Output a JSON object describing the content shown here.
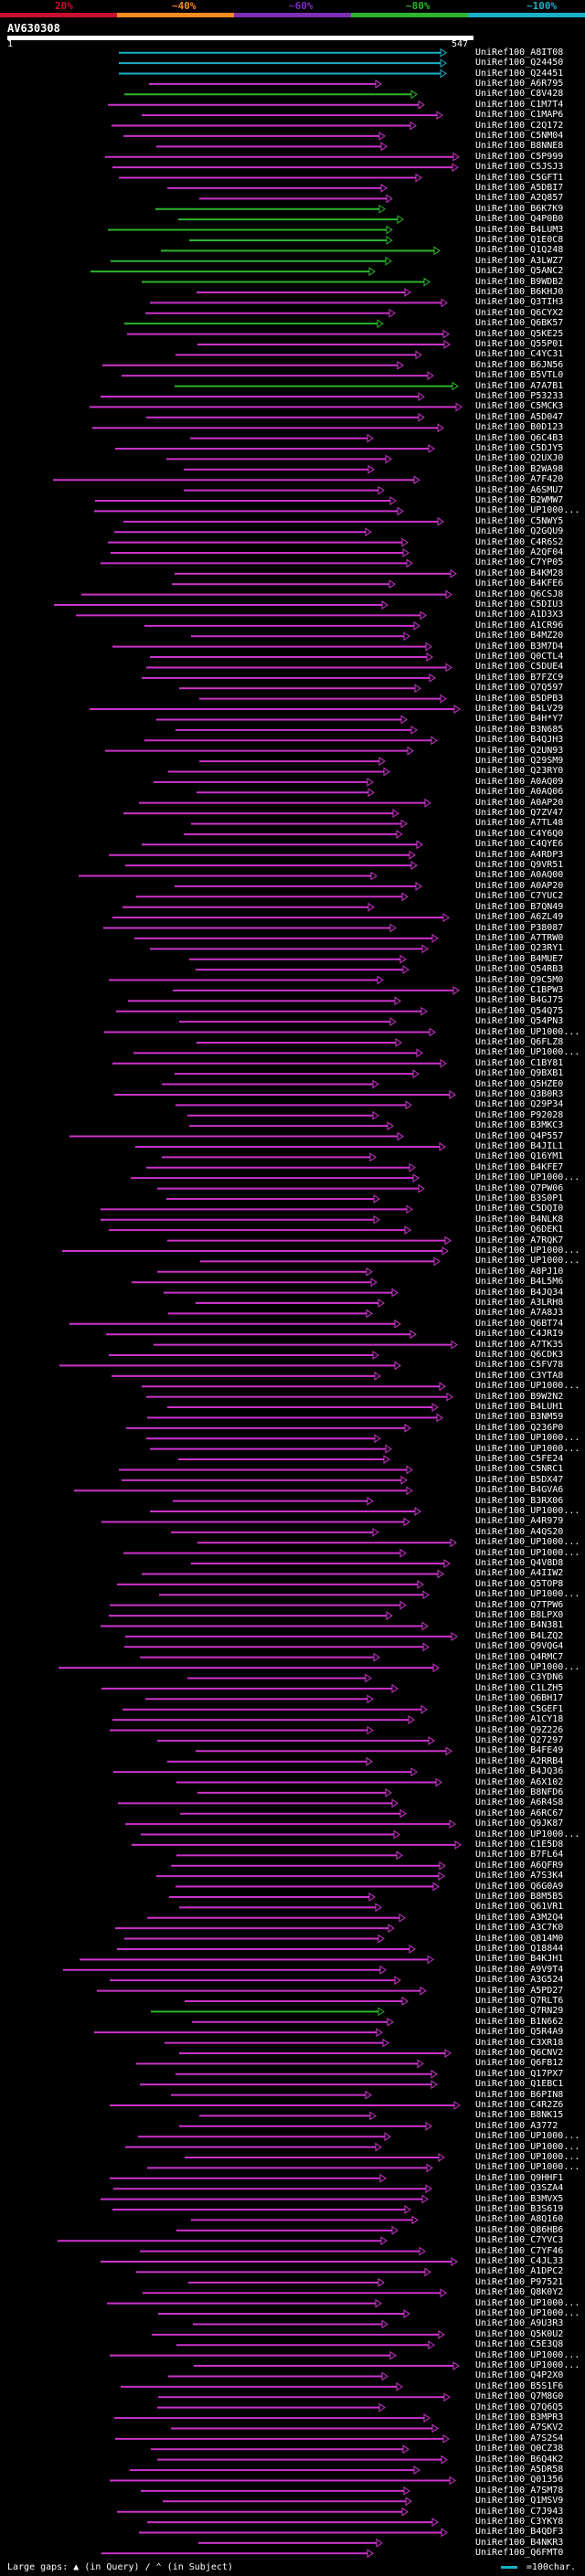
{
  "scale": {
    "ticks": [
      "20%",
      "~40%",
      "~60%",
      "~80%",
      "~100%"
    ],
    "colors": [
      "#c8102e",
      "#f58c1f",
      "#7d2eb5",
      "#2db52d",
      "#1ab0c7"
    ]
  },
  "query": {
    "name": "AV630308",
    "start": "1",
    "end": "547"
  },
  "hits": [
    {
      "name": "UniRef100_A8IT08",
      "c": "#1ab0c7"
    },
    {
      "name": "UniRef100_Q24450",
      "c": "#1ab0c7"
    },
    {
      "name": "UniRef100_Q24451",
      "c": "#1ab0c7"
    },
    {
      "name": "UniRef100_A6R795",
      "c": "#cc33cc"
    },
    {
      "name": "UniRef100_C8V428",
      "c": "#2db52d"
    },
    {
      "name": "UniRef100_C1M7T4",
      "c": "#cc33cc"
    },
    {
      "name": "UniRef100_C1MAP6",
      "c": "#cc33cc"
    },
    {
      "name": "UniRef100_C2Q172",
      "c": "#cc33cc"
    },
    {
      "name": "UniRef100_C5NM04",
      "c": "#cc33cc"
    },
    {
      "name": "UniRef100_B8NNE8",
      "c": "#cc33cc"
    },
    {
      "name": "UniRef100_C5P999",
      "c": "#cc33cc"
    },
    {
      "name": "UniRef100_C5JSJ3",
      "c": "#cc33cc"
    },
    {
      "name": "UniRef100_C5GFT1",
      "c": "#cc33cc"
    },
    {
      "name": "UniRef100_A5DBI7",
      "c": "#cc33cc"
    },
    {
      "name": "UniRef100_A2Q857",
      "c": "#cc33cc"
    },
    {
      "name": "UniRef100_B6K7K9",
      "c": "#2db52d"
    },
    {
      "name": "UniRef100_Q4P0B0",
      "c": "#2db52d"
    },
    {
      "name": "UniRef100_B4LUM3",
      "c": "#2db52d"
    },
    {
      "name": "UniRef100_Q1E0C8",
      "c": "#2db52d"
    },
    {
      "name": "UniRef100_Q1Q248",
      "c": "#2db52d"
    },
    {
      "name": "UniRef100_A3LWZ7",
      "c": "#2db52d"
    },
    {
      "name": "UniRef100_Q5ANC2",
      "c": "#2db52d"
    },
    {
      "name": "UniRef100_B9WDB2",
      "c": "#2db52d"
    },
    {
      "name": "UniRef100_B6KHJ0",
      "c": "#cc33cc"
    },
    {
      "name": "UniRef100_Q3TIH3",
      "c": "#cc33cc"
    },
    {
      "name": "UniRef100_Q6CYX2",
      "c": "#cc33cc"
    },
    {
      "name": "UniRef100_Q6BK57",
      "c": "#2db52d"
    },
    {
      "name": "UniRef100_Q5KE25",
      "c": "#cc33cc"
    },
    {
      "name": "UniRef100_Q55P01",
      "c": "#cc33cc"
    },
    {
      "name": "UniRef100_C4YC31",
      "c": "#cc33cc"
    },
    {
      "name": "UniRef100_B6JN56",
      "c": "#cc33cc"
    },
    {
      "name": "UniRef100_B5VTL0",
      "c": "#cc33cc"
    },
    {
      "name": "UniRef100_A7A7B1",
      "c": "#2db52d"
    },
    {
      "name": "UniRef100_P53233",
      "c": "#cc33cc"
    },
    {
      "name": "UniRef100_C5MCK3",
      "c": "#cc33cc"
    },
    {
      "name": "UniRef100_A5D047",
      "c": "#cc33cc"
    },
    {
      "name": "UniRef100_B0D123",
      "c": "#cc33cc"
    },
    {
      "name": "UniRef100_Q6C4B3",
      "c": "#cc33cc"
    },
    {
      "name": "UniRef100_C5DJY5",
      "c": "#cc33cc"
    },
    {
      "name": "UniRef100_Q2UXJ0",
      "c": "#cc33cc"
    },
    {
      "name": "UniRef100_B2WA98",
      "c": "#cc33cc"
    },
    {
      "name": "UniRef100_A7F420",
      "c": "#cc33cc"
    },
    {
      "name": "UniRef100_A6SMU7",
      "c": "#cc33cc"
    },
    {
      "name": "UniRef100_B2WMW7",
      "c": "#cc33cc"
    },
    {
      "name": "UniRef100_UP1000...",
      "c": "#cc33cc"
    },
    {
      "name": "UniRef100_C5NWY5",
      "c": "#cc33cc"
    },
    {
      "name": "UniRef100_Q2GQU9",
      "c": "#cc33cc"
    },
    {
      "name": "UniRef100_C4R6S2",
      "c": "#cc33cc"
    },
    {
      "name": "UniRef100_A2QF04",
      "c": "#cc33cc"
    },
    {
      "name": "UniRef100_C7YP05",
      "c": "#cc33cc"
    },
    {
      "name": "UniRef100_B4KM28",
      "c": "#cc33cc"
    },
    {
      "name": "UniRef100_B4KFE6",
      "c": "#cc33cc"
    },
    {
      "name": "UniRef100_Q6CSJ8",
      "c": "#cc33cc"
    },
    {
      "name": "UniRef100_C5DIU3",
      "c": "#cc33cc"
    },
    {
      "name": "UniRef100_A1D3X3",
      "c": "#cc33cc"
    },
    {
      "name": "UniRef100_A1CR96",
      "c": "#cc33cc"
    },
    {
      "name": "UniRef100_B4MZ20",
      "c": "#cc33cc"
    },
    {
      "name": "UniRef100_B3M7D4",
      "c": "#cc33cc"
    },
    {
      "name": "UniRef100_Q0CTL4",
      "c": "#cc33cc"
    },
    {
      "name": "UniRef100_C5DUE4",
      "c": "#cc33cc"
    },
    {
      "name": "UniRef100_B7FZC9",
      "c": "#cc33cc"
    },
    {
      "name": "UniRef100_Q7Q597",
      "c": "#cc33cc"
    },
    {
      "name": "UniRef100_B5DPB3",
      "c": "#cc33cc"
    },
    {
      "name": "UniRef100_B4LV29",
      "c": "#cc33cc"
    },
    {
      "name": "UniRef100_B4H*Y7",
      "c": "#cc33cc"
    },
    {
      "name": "UniRef100_B3N685",
      "c": "#cc33cc"
    },
    {
      "name": "UniRef100_B4QJH3",
      "c": "#cc33cc"
    },
    {
      "name": "UniRef100_Q2UN93",
      "c": "#cc33cc"
    },
    {
      "name": "UniRef100_Q29SM9",
      "c": "#cc33cc"
    },
    {
      "name": "UniRef100_Q23RY0",
      "c": "#cc33cc"
    },
    {
      "name": "UniRef100_A0AQ09",
      "c": "#cc33cc"
    },
    {
      "name": "UniRef100_A0AQ06",
      "c": "#cc33cc"
    },
    {
      "name": "UniRef100_A0AP20",
      "c": "#cc33cc"
    },
    {
      "name": "UniRef100_Q7ZV47",
      "c": "#cc33cc"
    },
    {
      "name": "UniRef100_A7TL48",
      "c": "#cc33cc"
    },
    {
      "name": "UniRef100_C4Y6Q0",
      "c": "#cc33cc"
    },
    {
      "name": "UniRef100_C4QYE6",
      "c": "#cc33cc"
    },
    {
      "name": "UniRef100_A4RDP3",
      "c": "#cc33cc"
    },
    {
      "name": "UniRef100_Q9VR51",
      "c": "#cc33cc"
    },
    {
      "name": "UniRef100_A0AQ00",
      "c": "#cc33cc"
    },
    {
      "name": "UniRef100_A0AP20",
      "c": "#cc33cc"
    },
    {
      "name": "UniRef100_C7YUC2",
      "c": "#cc33cc"
    },
    {
      "name": "UniRef100_B7QN49",
      "c": "#cc33cc"
    },
    {
      "name": "UniRef100_A6ZL49",
      "c": "#cc33cc"
    },
    {
      "name": "UniRef100_P38087",
      "c": "#cc33cc"
    },
    {
      "name": "UniRef100_A7TRW0",
      "c": "#cc33cc"
    },
    {
      "name": "UniRef100_Q23RY1",
      "c": "#cc33cc"
    },
    {
      "name": "UniRef100_B4MUE7",
      "c": "#cc33cc"
    },
    {
      "name": "UniRef100_Q54RB3",
      "c": "#cc33cc"
    },
    {
      "name": "UniRef100_Q9C5M0",
      "c": "#cc33cc"
    },
    {
      "name": "UniRef100_C1BPW3",
      "c": "#cc33cc"
    },
    {
      "name": "UniRef100_B4GJ75",
      "c": "#cc33cc"
    },
    {
      "name": "UniRef100_Q54Q75",
      "c": "#cc33cc"
    },
    {
      "name": "UniRef100_Q54PN3",
      "c": "#cc33cc"
    },
    {
      "name": "UniRef100_UP1000...",
      "c": "#cc33cc"
    },
    {
      "name": "UniRef100_Q6FLZ8",
      "c": "#cc33cc"
    },
    {
      "name": "UniRef100_UP1000...",
      "c": "#cc33cc"
    },
    {
      "name": "UniRef100_C1BY81",
      "c": "#cc33cc"
    },
    {
      "name": "UniRef100_Q9BXB1",
      "c": "#cc33cc"
    },
    {
      "name": "UniRef100_Q5HZE0",
      "c": "#cc33cc"
    },
    {
      "name": "UniRef100_Q3B0R3",
      "c": "#cc33cc"
    },
    {
      "name": "UniRef100_Q29P34",
      "c": "#cc33cc"
    },
    {
      "name": "UniRef100_P92028",
      "c": "#cc33cc"
    },
    {
      "name": "UniRef100_B3MKC3",
      "c": "#cc33cc"
    },
    {
      "name": "UniRef100_Q4P557",
      "c": "#cc33cc"
    },
    {
      "name": "UniRef100_B4JIL1",
      "c": "#cc33cc"
    },
    {
      "name": "UniRef100_Q16YM1",
      "c": "#cc33cc"
    },
    {
      "name": "UniRef100_B4KFE7",
      "c": "#cc33cc"
    },
    {
      "name": "UniRef100_UP1000...",
      "c": "#cc33cc"
    },
    {
      "name": "UniRef100_Q7PW06",
      "c": "#cc33cc"
    },
    {
      "name": "UniRef100_B3S0P1",
      "c": "#cc33cc"
    },
    {
      "name": "UniRef100_C5DQI0",
      "c": "#cc33cc"
    },
    {
      "name": "UniRef100_B4NLK8",
      "c": "#cc33cc"
    },
    {
      "name": "UniRef100_Q6DEK1",
      "c": "#cc33cc"
    },
    {
      "name": "UniRef100_A7RQK7",
      "c": "#cc33cc"
    },
    {
      "name": "UniRef100_UP1000...",
      "c": "#cc33cc"
    },
    {
      "name": "UniRef100_UP1000...",
      "c": "#cc33cc"
    },
    {
      "name": "UniRef100_A8PJ10",
      "c": "#cc33cc"
    },
    {
      "name": "UniRef100_B4L5M6",
      "c": "#cc33cc"
    },
    {
      "name": "UniRef100_B4JQ34",
      "c": "#cc33cc"
    },
    {
      "name": "UniRef100_A3LRH8",
      "c": "#cc33cc"
    },
    {
      "name": "UniRef100_A7A8J3",
      "c": "#cc33cc"
    },
    {
      "name": "UniRef100_Q6BT74",
      "c": "#cc33cc"
    },
    {
      "name": "UniRef100_C4JRI9",
      "c": "#cc33cc"
    },
    {
      "name": "UniRef100_A7TK35",
      "c": "#cc33cc"
    },
    {
      "name": "UniRef100_Q6CDK3",
      "c": "#cc33cc"
    },
    {
      "name": "UniRef100_C5FV78",
      "c": "#cc33cc"
    },
    {
      "name": "UniRef100_C3YTA8",
      "c": "#cc33cc"
    },
    {
      "name": "UniRef100_UP1000...",
      "c": "#cc33cc"
    },
    {
      "name": "UniRef100_B9W2N2",
      "c": "#cc33cc"
    },
    {
      "name": "UniRef100_B4LUH1",
      "c": "#cc33cc"
    },
    {
      "name": "UniRef100_B3NM59",
      "c": "#cc33cc"
    },
    {
      "name": "UniRef100_Q236P0",
      "c": "#cc33cc"
    },
    {
      "name": "UniRef100_UP1000...",
      "c": "#cc33cc"
    },
    {
      "name": "UniRef100_UP1000...",
      "c": "#cc33cc"
    },
    {
      "name": "UniRef100_C5FE24",
      "c": "#cc33cc"
    },
    {
      "name": "UniRef100_C5NRC1",
      "c": "#cc33cc"
    },
    {
      "name": "UniRef100_B5DX47",
      "c": "#cc33cc"
    },
    {
      "name": "UniRef100_B4GVA6",
      "c": "#cc33cc"
    },
    {
      "name": "UniRef100_B3RX06",
      "c": "#cc33cc"
    },
    {
      "name": "UniRef100_UP1000...",
      "c": "#cc33cc"
    },
    {
      "name": "UniRef100_A4R979",
      "c": "#cc33cc"
    },
    {
      "name": "UniRef100_A4QS20",
      "c": "#cc33cc"
    },
    {
      "name": "UniRef100_UP1000...",
      "c": "#cc33cc"
    },
    {
      "name": "UniRef100_UP1000...",
      "c": "#cc33cc"
    },
    {
      "name": "UniRef100_Q4V8D8",
      "c": "#cc33cc"
    },
    {
      "name": "UniRef100_A4IIW2",
      "c": "#cc33cc"
    },
    {
      "name": "UniRef100_Q5TOP8",
      "c": "#cc33cc"
    },
    {
      "name": "UniRef100_UP1000...",
      "c": "#cc33cc"
    },
    {
      "name": "UniRef100_Q7TPW6",
      "c": "#cc33cc"
    },
    {
      "name": "UniRef100_B8LPX0",
      "c": "#cc33cc"
    },
    {
      "name": "UniRef100_B4N381",
      "c": "#cc33cc"
    },
    {
      "name": "UniRef100_B4LZQ2",
      "c": "#cc33cc"
    },
    {
      "name": "UniRef100_Q9VQG4",
      "c": "#cc33cc"
    },
    {
      "name": "UniRef100_Q4RMC7",
      "c": "#cc33cc"
    },
    {
      "name": "UniRef100_UP1000...",
      "c": "#cc33cc"
    },
    {
      "name": "UniRef100_C3YDN6",
      "c": "#cc33cc"
    },
    {
      "name": "UniRef100_C1LZH5",
      "c": "#cc33cc"
    },
    {
      "name": "UniRef100_Q6BH17",
      "c": "#cc33cc"
    },
    {
      "name": "UniRef100_C5GEF1",
      "c": "#cc33cc"
    },
    {
      "name": "UniRef100_A1CY18",
      "c": "#cc33cc"
    },
    {
      "name": "UniRef100_Q9Z226",
      "c": "#cc33cc"
    },
    {
      "name": "UniRef100_Q27297",
      "c": "#cc33cc"
    },
    {
      "name": "UniRef100_B4FE49",
      "c": "#cc33cc"
    },
    {
      "name": "UniRef100_A2RRB4",
      "c": "#cc33cc"
    },
    {
      "name": "UniRef100_B4JQ36",
      "c": "#cc33cc"
    },
    {
      "name": "UniRef100_A6X102",
      "c": "#cc33cc"
    },
    {
      "name": "UniRef100_B8NFD6",
      "c": "#cc33cc"
    },
    {
      "name": "UniRef100_A6R4S8",
      "c": "#cc33cc"
    },
    {
      "name": "UniRef100_A6RC67",
      "c": "#cc33cc"
    },
    {
      "name": "UniRef100_Q9JK87",
      "c": "#cc33cc"
    },
    {
      "name": "UniRef100_UP1000...",
      "c": "#cc33cc"
    },
    {
      "name": "UniRef100_C1E5D8",
      "c": "#cc33cc"
    },
    {
      "name": "UniRef100_B7FL64",
      "c": "#cc33cc"
    },
    {
      "name": "UniRef100_A6QFR9",
      "c": "#cc33cc"
    },
    {
      "name": "UniRef100_A7S3K4",
      "c": "#cc33cc"
    },
    {
      "name": "UniRef100_Q6G0A9",
      "c": "#cc33cc"
    },
    {
      "name": "UniRef100_B8M5B5",
      "c": "#cc33cc"
    },
    {
      "name": "UniRef100_Q61VR1",
      "c": "#cc33cc"
    },
    {
      "name": "UniRef100_A3M2Q4",
      "c": "#cc33cc"
    },
    {
      "name": "UniRef100_A3C7K0",
      "c": "#cc33cc"
    },
    {
      "name": "UniRef100_Q814M0",
      "c": "#cc33cc"
    },
    {
      "name": "UniRef100_Q18844",
      "c": "#cc33cc"
    },
    {
      "name": "UniRef100_B4KJH1",
      "c": "#cc33cc"
    },
    {
      "name": "UniRef100_A9V9T4",
      "c": "#cc33cc"
    },
    {
      "name": "UniRef100_A3G524",
      "c": "#cc33cc"
    },
    {
      "name": "UniRef100_A5PD27",
      "c": "#cc33cc"
    },
    {
      "name": "UniRef100_Q7RLT6",
      "c": "#cc33cc"
    },
    {
      "name": "UniRef100_Q7RN29",
      "c": "#2db52d"
    },
    {
      "name": "UniRef100_B1N662",
      "c": "#cc33cc"
    },
    {
      "name": "UniRef100_Q5R4A9",
      "c": "#cc33cc"
    },
    {
      "name": "UniRef100_C3XR18",
      "c": "#cc33cc"
    },
    {
      "name": "UniRef100_Q6CNV2",
      "c": "#cc33cc"
    },
    {
      "name": "UniRef100_Q6FB12",
      "c": "#cc33cc"
    },
    {
      "name": "UniRef100_Q17PX7",
      "c": "#cc33cc"
    },
    {
      "name": "UniRef100_Q1EBC1",
      "c": "#cc33cc"
    },
    {
      "name": "UniRef100_B6PIN8",
      "c": "#cc33cc"
    },
    {
      "name": "UniRef100_C4R2Z6",
      "c": "#cc33cc"
    },
    {
      "name": "UniRef100_B8NK15",
      "c": "#cc33cc"
    },
    {
      "name": "UniRef100_A3772",
      "c": "#cc33cc"
    },
    {
      "name": "UniRef100_UP1000...",
      "c": "#cc33cc"
    },
    {
      "name": "UniRef100_UP1000...",
      "c": "#cc33cc"
    },
    {
      "name": "UniRef100_UP1000...",
      "c": "#cc33cc"
    },
    {
      "name": "UniRef100_UP1000...",
      "c": "#cc33cc"
    },
    {
      "name": "UniRef100_Q9HHF1",
      "c": "#cc33cc"
    },
    {
      "name": "UniRef100_Q3SZA4",
      "c": "#cc33cc"
    },
    {
      "name": "UniRef100_B3MVX5",
      "c": "#cc33cc"
    },
    {
      "name": "UniRef100_B3S619",
      "c": "#cc33cc"
    },
    {
      "name": "UniRef100_A8Q160",
      "c": "#cc33cc"
    },
    {
      "name": "UniRef100_Q86HB6",
      "c": "#cc33cc"
    },
    {
      "name": "UniRef100_C7YVC3",
      "c": "#cc33cc"
    },
    {
      "name": "UniRef100_C7YF46",
      "c": "#cc33cc"
    },
    {
      "name": "UniRef100_C4JL33",
      "c": "#cc33cc"
    },
    {
      "name": "UniRef100_A1DPC2",
      "c": "#cc33cc"
    },
    {
      "name": "UniRef100_P97521",
      "c": "#cc33cc"
    },
    {
      "name": "UniRef100_Q8K0Y2",
      "c": "#cc33cc"
    },
    {
      "name": "UniRef100_UP1000...",
      "c": "#cc33cc"
    },
    {
      "name": "UniRef100_UP1000...",
      "c": "#cc33cc"
    },
    {
      "name": "UniRef100_A9U3R3",
      "c": "#cc33cc"
    },
    {
      "name": "UniRef100_Q5K0U2",
      "c": "#cc33cc"
    },
    {
      "name": "UniRef100_C5E3Q8",
      "c": "#cc33cc"
    },
    {
      "name": "UniRef100_UP1000...",
      "c": "#cc33cc"
    },
    {
      "name": "UniRef100_UP1000...",
      "c": "#cc33cc"
    },
    {
      "name": "UniRef100_Q4P2X0",
      "c": "#cc33cc"
    },
    {
      "name": "UniRef100_B5S1F6",
      "c": "#cc33cc"
    },
    {
      "name": "UniRef100_Q7M8G0",
      "c": "#cc33cc"
    },
    {
      "name": "UniRef100_Q7Q6Q5",
      "c": "#cc33cc"
    },
    {
      "name": "UniRef100_B3MPR3",
      "c": "#cc33cc"
    },
    {
      "name": "UniRef100_A7SKV2",
      "c": "#cc33cc"
    },
    {
      "name": "UniRef100_A7S2S4",
      "c": "#cc33cc"
    },
    {
      "name": "UniRef100_Q0CZ38",
      "c": "#cc33cc"
    },
    {
      "name": "UniRef100_B6Q4K2",
      "c": "#cc33cc"
    },
    {
      "name": "UniRef100_A5DR58",
      "c": "#cc33cc"
    },
    {
      "name": "UniRef100_Q01356",
      "c": "#cc33cc"
    },
    {
      "name": "UniRef100_A7SM78",
      "c": "#cc33cc"
    },
    {
      "name": "UniRef100_Q1MSV9",
      "c": "#cc33cc"
    },
    {
      "name": "UniRef100_C7J943",
      "c": "#cc33cc"
    },
    {
      "name": "UniRef100_C3YKY8",
      "c": "#cc33cc"
    },
    {
      "name": "UniRef100_B4QDF3",
      "c": "#cc33cc"
    },
    {
      "name": "UniRef100_B4NKR3",
      "c": "#cc33cc"
    },
    {
      "name": "UniRef100_Q6FMT0",
      "c": "#cc33cc"
    }
  ],
  "footer": {
    "large_gaps_label": "Large gaps:",
    "in_query": "(in Query)",
    "in_subject": "(in Subject)",
    "legend_label": "=100char."
  }
}
